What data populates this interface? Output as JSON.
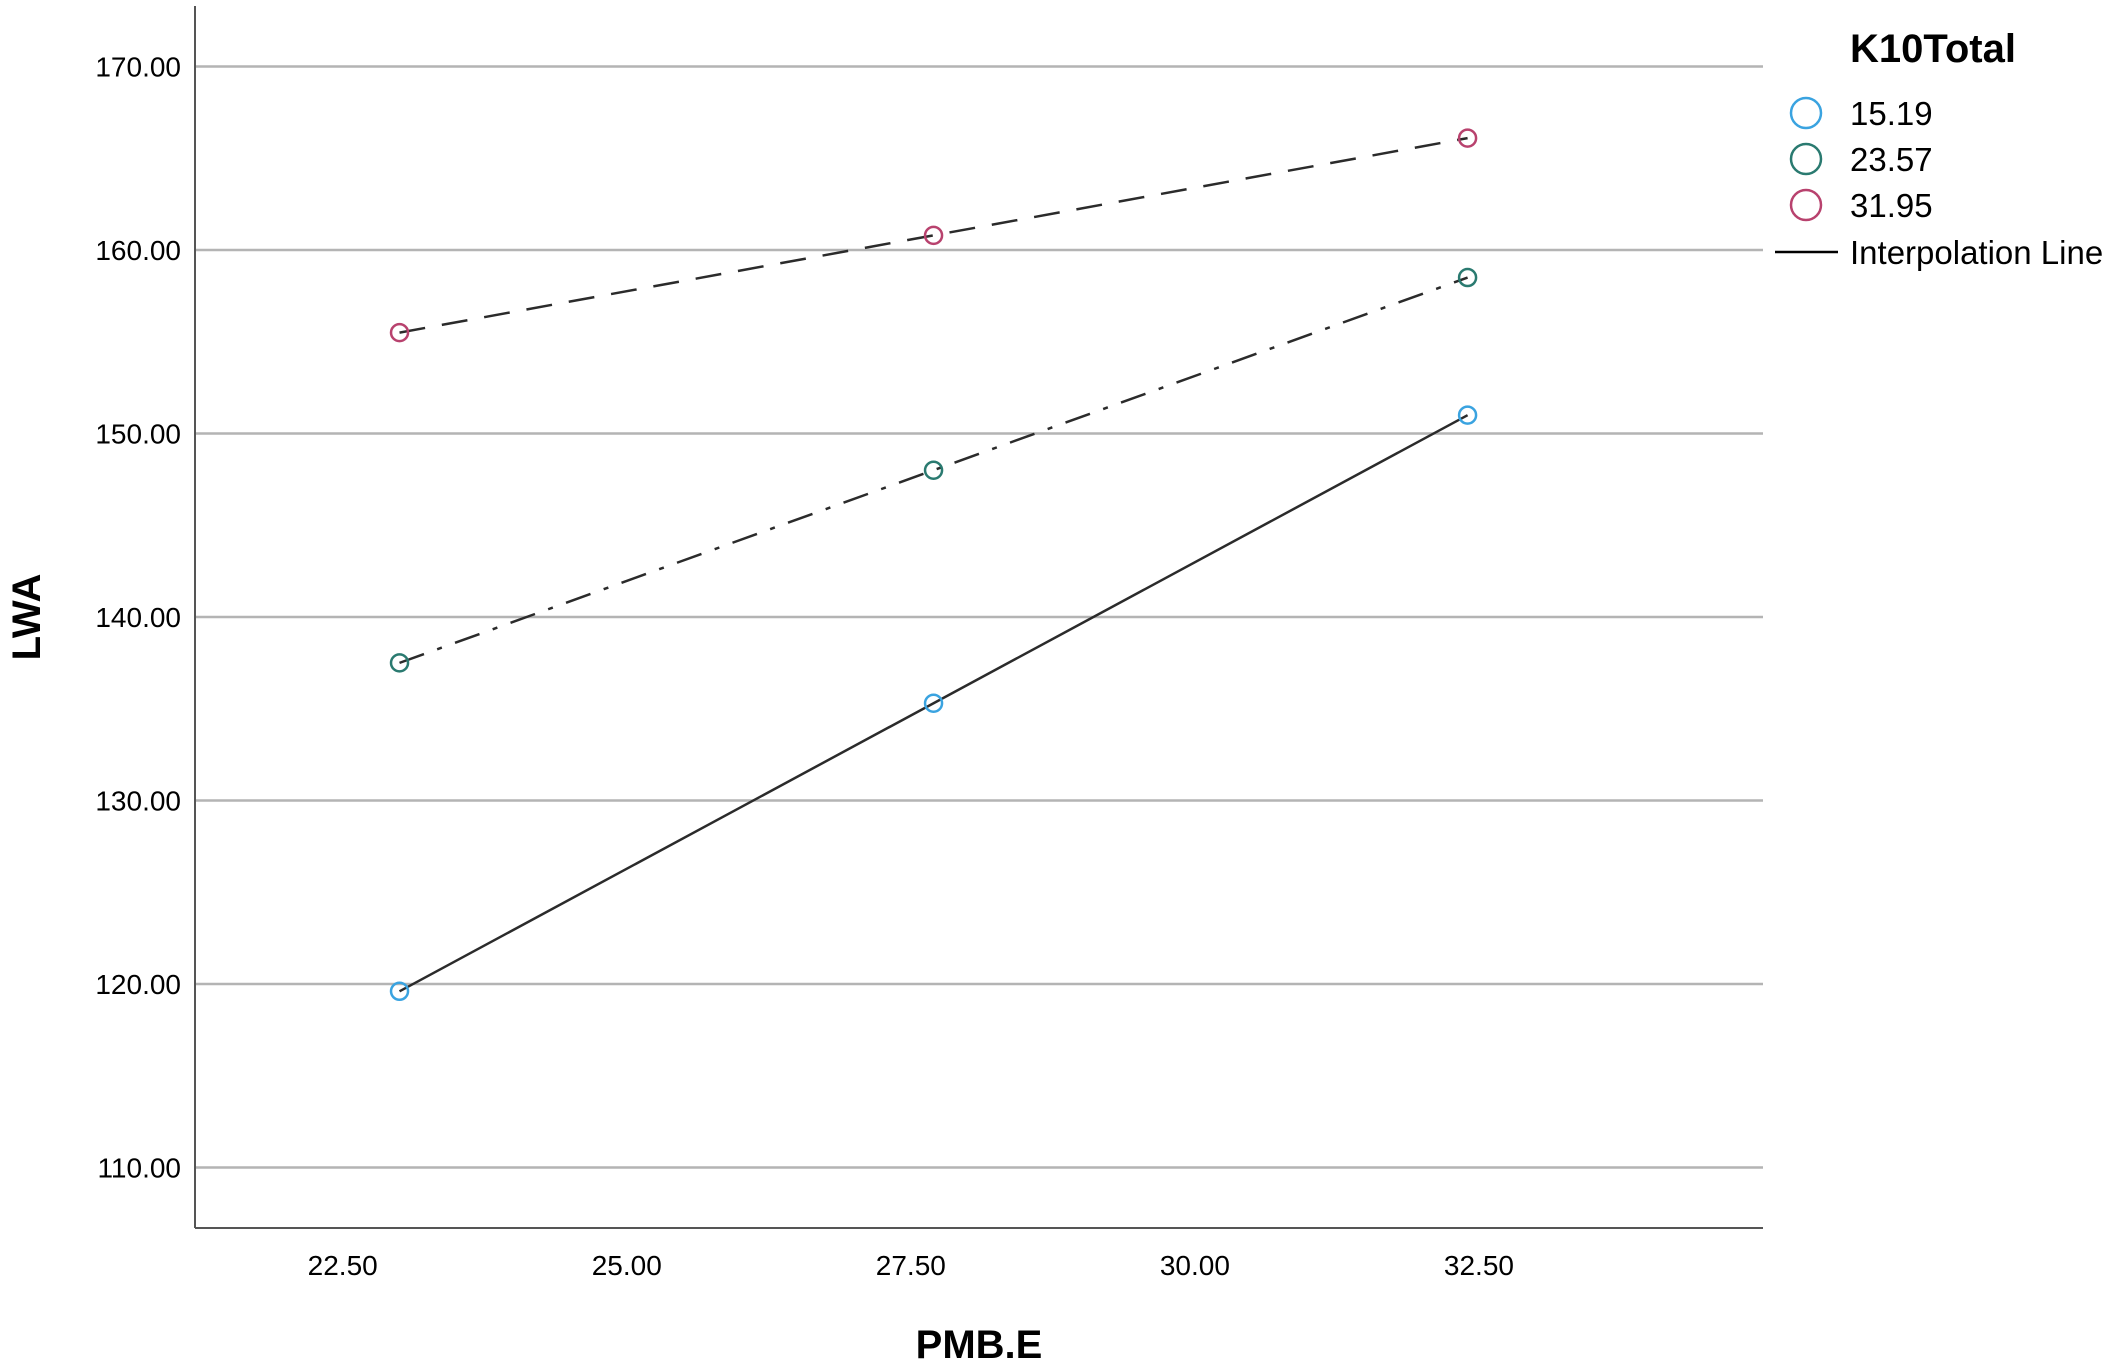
{
  "chart_data": {
    "type": "line",
    "xlabel": "PMB.E",
    "ylabel": "LWA",
    "xlim": [
      21.2,
      35.0
    ],
    "ylim": [
      106.7,
      173.3
    ],
    "xticks": [
      22.5,
      25.0,
      27.5,
      30.0,
      32.5
    ],
    "xtick_labels": [
      "22.50",
      "25.00",
      "27.50",
      "30.00",
      "32.50"
    ],
    "yticks": [
      110,
      120,
      130,
      140,
      150,
      160,
      170
    ],
    "ytick_labels": [
      "110.00",
      "120.00",
      "130.00",
      "140.00",
      "150.00",
      "160.00",
      "170.00"
    ],
    "grid": {
      "horizontal": true,
      "vertical": false
    },
    "legend": {
      "title": "K10Total",
      "placement": "top-right",
      "interpolation_label": "Interpolation Line"
    },
    "x": [
      23.0,
      27.7,
      32.4
    ],
    "series": [
      {
        "name": "15.19",
        "values": [
          119.6,
          135.3,
          151.0
        ],
        "color": "#3aa3e0",
        "dash": "solid"
      },
      {
        "name": "23.57",
        "values": [
          137.5,
          148.0,
          158.5
        ],
        "color": "#2a7a70",
        "dash": "dashdot"
      },
      {
        "name": "31.95",
        "values": [
          155.5,
          160.8,
          166.1
        ],
        "color": "#b8426e",
        "dash": "dash"
      }
    ]
  }
}
